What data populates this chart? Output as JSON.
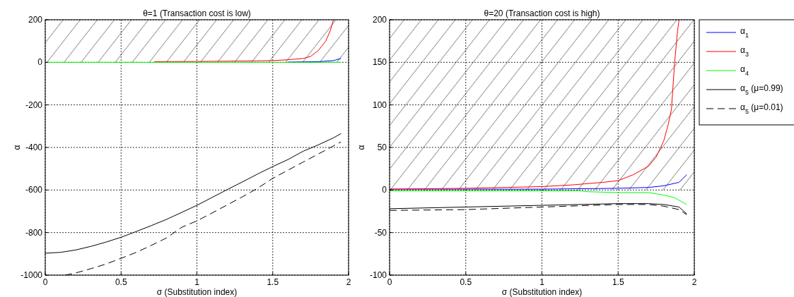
{
  "chart_data": [
    {
      "type": "line",
      "title": "θ=1 (Transaction cost is low)",
      "xlabel": "σ (Substitution index)",
      "ylabel": "α",
      "xlim": [
        0,
        2
      ],
      "ylim": [
        -1000,
        200
      ],
      "xticks": [
        0,
        0.5,
        1,
        1.5,
        2
      ],
      "yticks": [
        -1000,
        -800,
        -600,
        -400,
        -200,
        0,
        200
      ],
      "grid": true,
      "legend": false,
      "bands": [
        {
          "axis": "y",
          "from": 0,
          "to": 200,
          "color": "#000000"
        }
      ],
      "series": [
        {
          "color": "#0000ff",
          "x": [
            1.6,
            1.7,
            1.8,
            1.9,
            1.95
          ],
          "values": [
            1,
            2,
            3,
            8,
            18
          ]
        },
        {
          "color": "#ff0000",
          "x": [
            0.72,
            1,
            1.3,
            1.5,
            1.6,
            1.7,
            1.75,
            1.8,
            1.85,
            1.88,
            1.9
          ],
          "values": [
            3,
            4,
            6,
            8,
            12,
            18,
            28,
            55,
            100,
            150,
            200
          ]
        },
        {
          "color": "#00ff00",
          "x": [
            0,
            0.5,
            1,
            1.5,
            1.95
          ],
          "values": [
            0,
            0,
            0,
            0,
            0
          ]
        },
        {
          "color": "#000000",
          "line_style": "solid",
          "x": [
            0,
            0.1,
            0.2,
            0.3,
            0.4,
            0.5,
            0.6,
            0.7,
            0.8,
            0.9,
            1.0,
            1.1,
            1.2,
            1.3,
            1.4,
            1.5,
            1.6,
            1.7,
            1.8,
            1.9,
            1.95
          ],
          "values": [
            -897,
            -893,
            -882,
            -865,
            -845,
            -822,
            -795,
            -767,
            -738,
            -705,
            -672,
            -635,
            -598,
            -562,
            -525,
            -490,
            -457,
            -418,
            -388,
            -355,
            -335
          ]
        },
        {
          "color": "#000000",
          "line_style": "dashed",
          "x": [
            0.13,
            0.2,
            0.3,
            0.4,
            0.5,
            0.6,
            0.7,
            0.8,
            0.9,
            1.0,
            1.1,
            1.2,
            1.3,
            1.4,
            1.5,
            1.6,
            1.7,
            1.8,
            1.9,
            1.95
          ],
          "values": [
            -1000,
            -990,
            -970,
            -948,
            -921,
            -893,
            -860,
            -825,
            -775,
            -745,
            -708,
            -670,
            -632,
            -592,
            -545,
            -507,
            -469,
            -431,
            -393,
            -374
          ]
        }
      ]
    },
    {
      "type": "line",
      "title": "θ=20 (Transaction cost is high)",
      "xlabel": "σ (Substitution index)",
      "ylabel": "α",
      "xlim": [
        0,
        2
      ],
      "ylim": [
        -100,
        200
      ],
      "xticks": [
        0,
        0.5,
        1,
        1.5,
        2
      ],
      "yticks": [
        -100,
        -50,
        0,
        50,
        100,
        150,
        200
      ],
      "grid": true,
      "legend": "right",
      "bands": [
        {
          "axis": "y",
          "from": 0,
          "to": 200,
          "color": "#000000"
        }
      ],
      "series": [
        {
          "name": "α$_{1}$",
          "color": "#0000ff",
          "x": [
            0,
            0.5,
            1,
            1.5,
            1.7,
            1.8,
            1.9,
            1.95
          ],
          "values": [
            1,
            1,
            1,
            2,
            3,
            5,
            9,
            18
          ]
        },
        {
          "name": "α$_{3}$",
          "color": "#ff0000",
          "x": [
            0,
            0.5,
            1.0,
            1.2,
            1.4,
            1.5,
            1.6,
            1.7,
            1.75,
            1.8,
            1.83,
            1.85,
            1.87,
            1.89,
            1.9
          ],
          "values": [
            1,
            2,
            4,
            6,
            9,
            11,
            18,
            28,
            39,
            58,
            78,
            95,
            148,
            187,
            200
          ]
        },
        {
          "name": "α$_{4}$",
          "color": "#00ff00",
          "x": [
            0,
            1.25,
            1.3,
            1.5,
            1.7,
            1.8,
            1.87,
            1.95
          ],
          "values": [
            -1,
            -1,
            -2,
            -3,
            -3,
            -6,
            -9,
            -17
          ]
        },
        {
          "name": "α$_{5}$ (μ=0.99)",
          "color": "#000000",
          "line_style": "solid",
          "x": [
            0,
            0.5,
            1,
            1.5,
            1.7,
            1.8,
            1.9,
            1.95
          ],
          "values": [
            -22,
            -20,
            -18,
            -16,
            -16,
            -17,
            -20,
            -28
          ]
        },
        {
          "name": "α$_{5}$ (μ=0.01)",
          "color": "#000000",
          "line_style": "dashed",
          "x": [
            0,
            0.5,
            1,
            1.5,
            1.7,
            1.8,
            1.9,
            1.95
          ],
          "values": [
            -24,
            -23,
            -20,
            -17,
            -17,
            -19,
            -23,
            -29
          ]
        }
      ]
    }
  ]
}
